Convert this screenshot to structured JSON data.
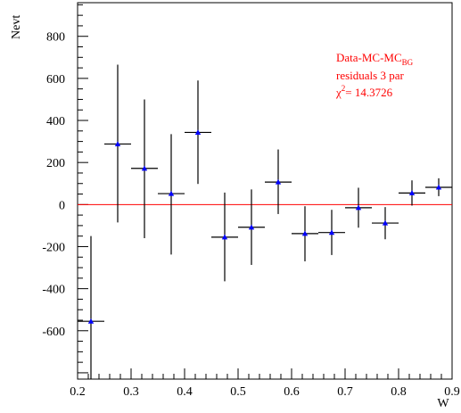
{
  "chart_data": {
    "type": "scatter",
    "xlabel": "W",
    "ylabel": "Nevt",
    "xlim": [
      0.2,
      0.9
    ],
    "ylim": [
      -830,
      960
    ],
    "x_ticks": [
      "0.2",
      "0.3",
      "0.4",
      "0.5",
      "0.6",
      "0.7",
      "0.8",
      "0.9"
    ],
    "y_ticks": [
      "-600",
      "-400",
      "-200",
      "0",
      "200",
      "400",
      "600",
      "800"
    ],
    "grid": false,
    "reference_line": {
      "y": 0,
      "color": "#ff0000"
    },
    "annotation": {
      "line1": "Data-MC-MC",
      "line1_sub": "BG",
      "line2": "residuals 3 par",
      "line3_symbol": "χ",
      "line3_sup": "2",
      "line3_value": "= 14.3726",
      "color": "#ff0000"
    },
    "marker_color": "#0000ff",
    "points": [
      {
        "x": 0.225,
        "y": -555,
        "xerr": 0.025,
        "ylo": -1100,
        "yhi": -150
      },
      {
        "x": 0.275,
        "y": 288,
        "xerr": 0.025,
        "ylo": -85,
        "yhi": 665
      },
      {
        "x": 0.325,
        "y": 172,
        "xerr": 0.025,
        "ylo": -160,
        "yhi": 500
      },
      {
        "x": 0.375,
        "y": 52,
        "xerr": 0.025,
        "ylo": -238,
        "yhi": 335
      },
      {
        "x": 0.425,
        "y": 343,
        "xerr": 0.025,
        "ylo": 98,
        "yhi": 590
      },
      {
        "x": 0.475,
        "y": -155,
        "xerr": 0.025,
        "ylo": -365,
        "yhi": 57
      },
      {
        "x": 0.525,
        "y": -108,
        "xerr": 0.025,
        "ylo": -287,
        "yhi": 72
      },
      {
        "x": 0.575,
        "y": 107,
        "xerr": 0.025,
        "ylo": -45,
        "yhi": 262
      },
      {
        "x": 0.625,
        "y": -138,
        "xerr": 0.025,
        "ylo": -270,
        "yhi": -8
      },
      {
        "x": 0.675,
        "y": -133,
        "xerr": 0.025,
        "ylo": -240,
        "yhi": -25
      },
      {
        "x": 0.725,
        "y": -15,
        "xerr": 0.025,
        "ylo": -110,
        "yhi": 80
      },
      {
        "x": 0.775,
        "y": -88,
        "xerr": 0.025,
        "ylo": -165,
        "yhi": -12
      },
      {
        "x": 0.825,
        "y": 55,
        "xerr": 0.025,
        "ylo": -5,
        "yhi": 115
      },
      {
        "x": 0.875,
        "y": 82,
        "xerr": 0.025,
        "ylo": 40,
        "yhi": 125
      }
    ]
  }
}
